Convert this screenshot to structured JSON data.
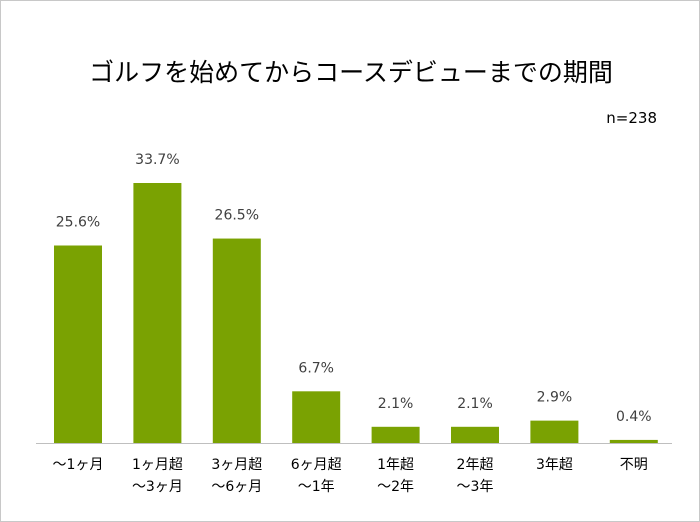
{
  "chart_data": {
    "type": "bar",
    "title": "ゴルフを始めてからコースデビューまでの期間",
    "annotation": "n=238",
    "categories": [
      [
        "～1ヶ月"
      ],
      [
        "1ヶ月超",
        "～3ヶ月"
      ],
      [
        "3ヶ月超",
        "～6ヶ月"
      ],
      [
        "6ヶ月超",
        "～1年"
      ],
      [
        "1年超",
        "～2年"
      ],
      [
        "2年超",
        "～3年"
      ],
      [
        "3年超"
      ],
      [
        "不明"
      ]
    ],
    "values": [
      25.6,
      33.7,
      26.5,
      6.7,
      2.1,
      2.1,
      2.9,
      0.4
    ],
    "data_labels": [
      "25.6%",
      "33.7%",
      "26.5%",
      "6.7%",
      "2.1%",
      "2.1%",
      "2.9%",
      "0.4%"
    ],
    "xlabel": "",
    "ylabel": "",
    "grid": false,
    "colors": {
      "bar": "#7aa202",
      "axis": "#bfbfbf",
      "label": "#404040"
    }
  }
}
